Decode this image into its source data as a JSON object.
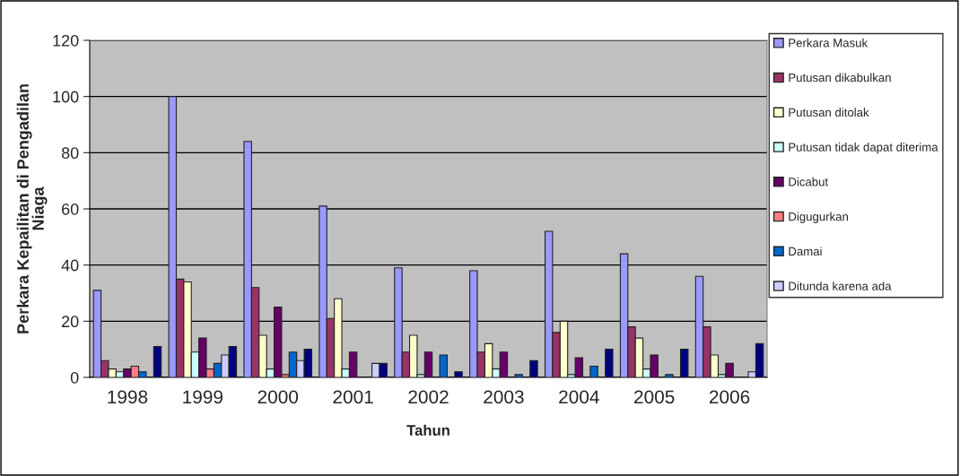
{
  "chart_data": {
    "type": "bar",
    "xlabel": "Tahun",
    "ylabel": "Perkara Kepailitan di Pengadilan\nNiaga",
    "categories": [
      "1998",
      "1999",
      "2000",
      "2001",
      "2002",
      "2003",
      "2004",
      "2005",
      "2006"
    ],
    "series": [
      {
        "name": "Perkara Masuk",
        "color": "#9999ff",
        "values": [
          31,
          100,
          84,
          61,
          39,
          38,
          52,
          44,
          36
        ]
      },
      {
        "name": "Putusan dikabulkan",
        "color": "#993366",
        "values": [
          6,
          35,
          32,
          21,
          9,
          9,
          16,
          18,
          18
        ]
      },
      {
        "name": "Putusan ditolak",
        "color": "#ffffcc",
        "values": [
          3,
          34,
          15,
          28,
          15,
          12,
          20,
          14,
          8
        ]
      },
      {
        "name": "Putusan tidak dapat diterima",
        "color": "#ccffff",
        "values": [
          2,
          9,
          3,
          3,
          1,
          3,
          1,
          3,
          1
        ]
      },
      {
        "name": "Dicabut",
        "color": "#660066",
        "values": [
          3,
          14,
          25,
          9,
          9,
          9,
          7,
          8,
          5
        ]
      },
      {
        "name": "Digugurkan",
        "color": "#ff8080",
        "values": [
          4,
          3,
          1,
          null,
          null,
          null,
          null,
          null,
          null
        ]
      },
      {
        "name": "Damai",
        "color": "#0066cc",
        "values": [
          2,
          5,
          9,
          null,
          8,
          1,
          4,
          1,
          null
        ]
      },
      {
        "name": "Ditunda karena ada",
        "color": "#ccccff",
        "values": [
          null,
          8,
          6,
          5,
          null,
          null,
          null,
          null,
          2
        ]
      },
      {
        "color": "#000080",
        "values": [
          11,
          11,
          10,
          5,
          2,
          6,
          10,
          10,
          12
        ]
      }
    ],
    "ylim": [
      0,
      120
    ],
    "yticks": [
      0,
      20,
      40,
      60,
      80,
      100,
      120
    ],
    "grid": "y",
    "legend": "right"
  }
}
